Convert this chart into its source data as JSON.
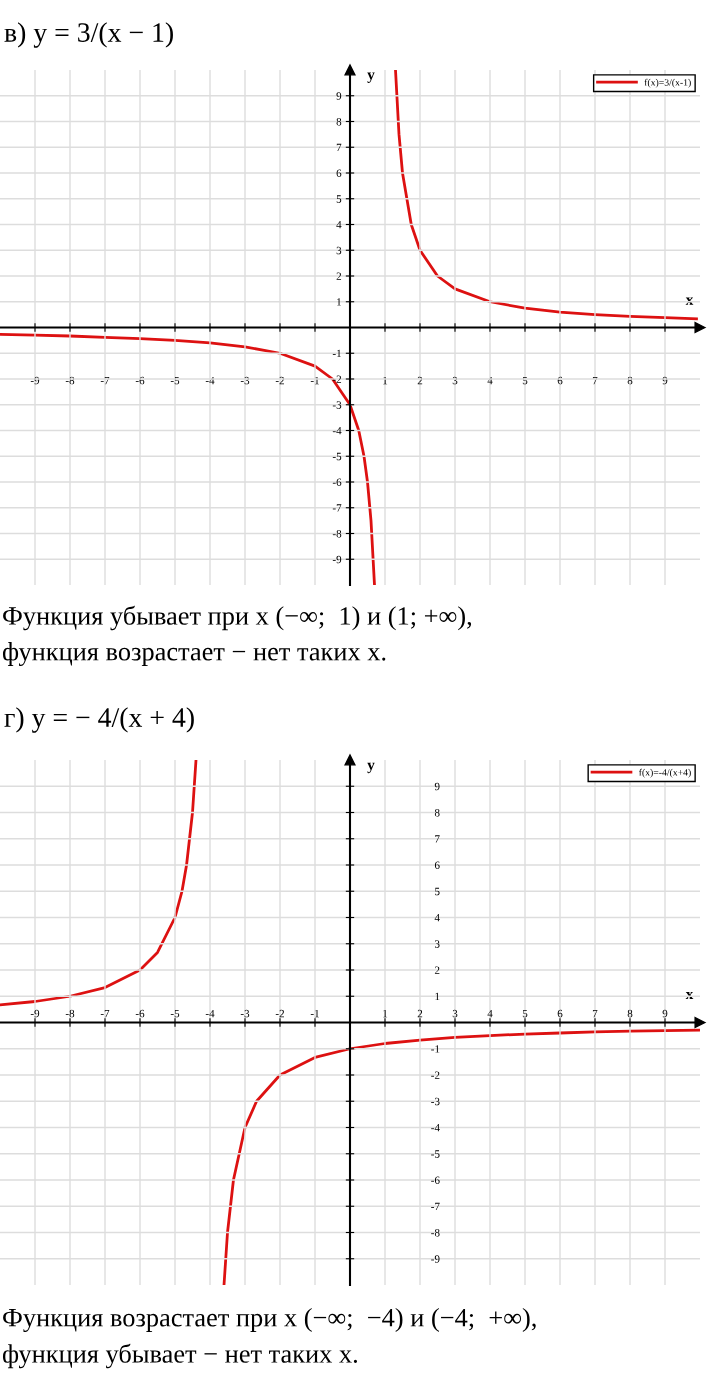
{
  "chart_data": [
    {
      "type": "line",
      "title": "в) y = 3/(x − 1)",
      "xlabel": "x",
      "ylabel": "y",
      "x": [
        -10,
        -9,
        -8,
        -7,
        -6,
        -5,
        -4,
        -3,
        -2,
        -1,
        -0.5,
        0,
        0.25,
        0.4,
        0.5,
        0.6,
        0.7,
        1,
        1.3,
        1.4,
        1.5,
        1.75,
        2,
        2.5,
        3,
        4,
        5,
        6,
        7,
        8,
        9,
        9.9
      ],
      "series": [
        {
          "name": "f(x)=3/(x-1)",
          "color": "#dd1111",
          "values": [
            -0.27,
            -0.3,
            -0.33,
            -0.38,
            -0.43,
            -0.5,
            -0.6,
            -0.75,
            -1,
            -1.5,
            -2,
            -3,
            -4,
            -5,
            -6,
            -7.5,
            -10,
            null,
            10,
            7.5,
            6,
            4,
            3,
            2,
            1.5,
            1,
            0.75,
            0.6,
            0.5,
            0.43,
            0.38,
            0.34
          ]
        }
      ],
      "xlim": [
        -10,
        10
      ],
      "ylim": [
        -10,
        10
      ],
      "xticks": [
        -9,
        -8,
        -7,
        -6,
        -5,
        -4,
        -3,
        -2,
        -1,
        1,
        2,
        3,
        4,
        5,
        6,
        7,
        8,
        9
      ],
      "yticks": [
        -9,
        -8,
        -7,
        -6,
        -5,
        -4,
        -3,
        -2,
        -1,
        1,
        2,
        3,
        4,
        5,
        6,
        7,
        8,
        9
      ],
      "grid": true,
      "legend": "top right",
      "marker": "none",
      "line_style": "solid",
      "annotations": [
        "Функция убывает при x (−∞;  1) и (1; +∞),",
        "функция возрастает − нет таких x."
      ]
    },
    {
      "type": "line",
      "title": "г) y = − 4/(x + 4)",
      "xlabel": "x",
      "ylabel": "y",
      "x": [
        -10,
        -9,
        -8,
        -7,
        -6,
        -5.5,
        -5,
        -4.8,
        -4.67,
        -4.5,
        -4.4,
        -4,
        -3.6,
        -3.5,
        -3.33,
        -3,
        -2.67,
        -2,
        -1,
        0,
        1,
        2,
        3,
        4,
        5,
        6,
        7,
        8,
        9,
        10
      ],
      "series": [
        {
          "name": "f(x)=-4/(x+4)",
          "color": "#dd1111",
          "values": [
            0.67,
            0.8,
            1,
            1.33,
            2,
            2.67,
            4,
            5,
            6,
            8,
            10,
            null,
            -10,
            -8,
            -6,
            -4,
            -3,
            -2,
            -1.33,
            -1,
            -0.8,
            -0.67,
            -0.57,
            -0.5,
            -0.44,
            -0.4,
            -0.36,
            -0.33,
            -0.31,
            -0.29
          ]
        }
      ],
      "xlim": [
        -10,
        10
      ],
      "ylim": [
        -10,
        10
      ],
      "xticks": [
        -9,
        -8,
        -7,
        -6,
        -5,
        -4,
        -3,
        -2,
        -1,
        1,
        2,
        3,
        4,
        5,
        6,
        7,
        8,
        9
      ],
      "yticks": [
        -9,
        -8,
        -7,
        -6,
        -5,
        -4,
        -3,
        -2,
        -1,
        1,
        2,
        3,
        4,
        5,
        6,
        7,
        8,
        9
      ],
      "grid": true,
      "legend": "top right",
      "marker": "none",
      "line_style": "solid",
      "annotations": [
        "Функция возрастает при x (−∞;  −4) и (−4;  +∞),",
        "функция убывает − нет таких x."
      ]
    }
  ]
}
